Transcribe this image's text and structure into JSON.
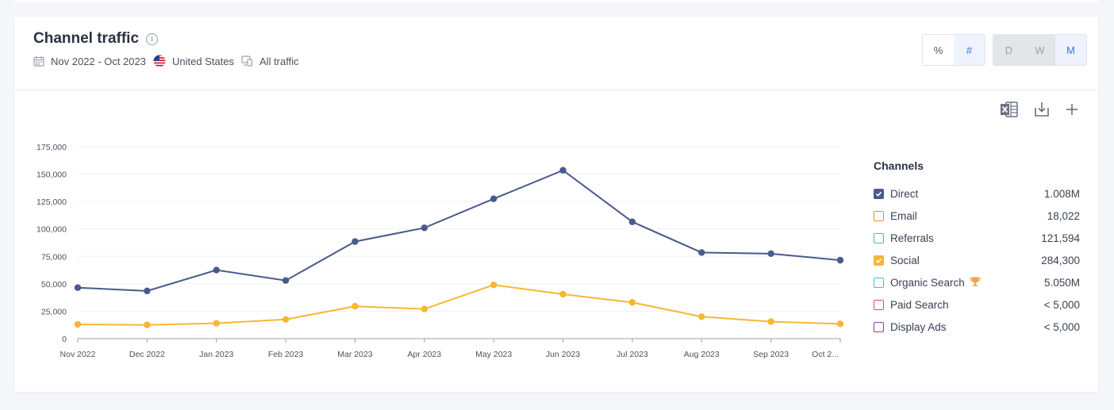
{
  "header": {
    "title": "Channel traffic",
    "date_range": "Nov 2022 - Oct 2023",
    "country": "United States",
    "traffic_type": "All traffic"
  },
  "metric_toggle": [
    {
      "label": "%",
      "active": false
    },
    {
      "label": "#",
      "active": true
    }
  ],
  "granularity_toggle": [
    {
      "label": "D",
      "active": false
    },
    {
      "label": "W",
      "active": false
    },
    {
      "label": "M",
      "active": true
    }
  ],
  "toolbar": {
    "icons": [
      "excel-export-icon",
      "download-icon",
      "plus-icon"
    ]
  },
  "legend": {
    "title": "Channels",
    "items": [
      {
        "label": "Direct",
        "value": "1.008M",
        "color": "#4a5a8c",
        "checked": true
      },
      {
        "label": "Email",
        "value": "18,022",
        "color": "#f08a2c",
        "checked": false
      },
      {
        "label": "Referrals",
        "value": "121,594",
        "color": "#3cc3a0",
        "checked": false
      },
      {
        "label": "Social",
        "value": "284,300",
        "color": "#f7b733",
        "checked": true
      },
      {
        "label": "Organic Search",
        "value": "5.050M",
        "color": "#3bbfd6",
        "checked": false,
        "badge": "trophy-icon"
      },
      {
        "label": "Paid Search",
        "value": "< 5,000",
        "color": "#e0457b",
        "checked": false
      },
      {
        "label": "Display Ads",
        "value": "< 5,000",
        "color": "#8b3fa0",
        "checked": false
      }
    ]
  },
  "chart_data": {
    "type": "line",
    "categories": [
      "Nov 2022",
      "Dec 2022",
      "Jan 2023",
      "Feb 2023",
      "Mar 2023",
      "Apr 2023",
      "May 2023",
      "Jun 2023",
      "Jul 2023",
      "Aug 2023",
      "Sep 2023",
      "Oct 2..."
    ],
    "series": [
      {
        "name": "Direct",
        "color": "#4a5a8c",
        "values": [
          46500,
          43500,
          62500,
          53000,
          88500,
          101000,
          127500,
          153500,
          106500,
          78500,
          77500,
          71500
        ]
      },
      {
        "name": "Social",
        "color": "#f7b733",
        "values": [
          13000,
          12500,
          14000,
          17500,
          29500,
          27000,
          49000,
          40500,
          33000,
          20000,
          15500,
          13500
        ]
      }
    ],
    "yticks": [
      "0",
      "25,000",
      "50,000",
      "75,000",
      "100,000",
      "125,000",
      "150,000",
      "175,000"
    ],
    "ylim": [
      0,
      175000
    ],
    "grid": true
  }
}
